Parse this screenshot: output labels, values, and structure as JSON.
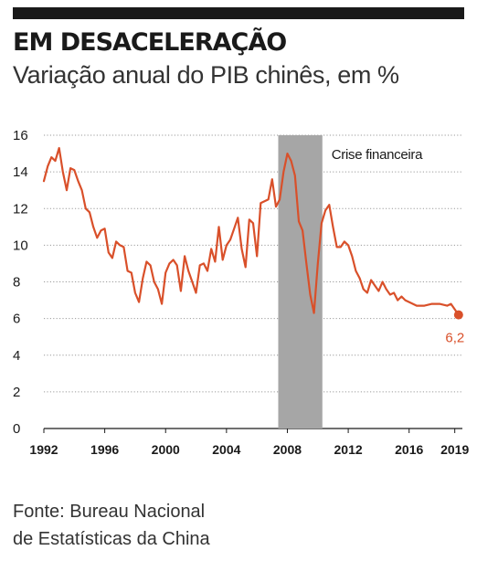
{
  "title": "EM DESACELERAÇÃO",
  "subtitle": "Variação anual do PIB chinês, em %",
  "source": {
    "line1": "Fonte: Bureau Nacional",
    "line2": "de Estatísticas da China"
  },
  "colors": {
    "line": "#d9502a",
    "crisis_band": "#a6a6a6",
    "grid": "#9a9a9a",
    "text": "#1a1a1a"
  },
  "chart_data": {
    "type": "line",
    "title": "EM DESACELERAÇÃO",
    "subtitle": "Variação anual do PIB chinês, em %",
    "xlabel": "",
    "ylabel": "",
    "xlim": [
      1992,
      2019.5
    ],
    "ylim": [
      0,
      16
    ],
    "y_ticks": [
      "0",
      "2",
      "4",
      "6",
      "8",
      "10",
      "12",
      "14",
      "16"
    ],
    "x_ticks": [
      "1992",
      "1996",
      "2000",
      "2004",
      "2008",
      "2012",
      "2016",
      "2019"
    ],
    "grid": true,
    "shaded_region": {
      "from": 2007.4,
      "to": 2010.3,
      "label": "Crise financeira"
    },
    "annotation": {
      "x": 2019.25,
      "y": 6.2,
      "label": "6,2"
    },
    "series": [
      {
        "values": [
          [
            1992.0,
            13.5
          ],
          [
            1992.25,
            14.3
          ],
          [
            1992.5,
            14.8
          ],
          [
            1992.75,
            14.6
          ],
          [
            1993.0,
            15.3
          ],
          [
            1993.25,
            14.0
          ],
          [
            1993.5,
            13.0
          ],
          [
            1993.75,
            14.2
          ],
          [
            1994.0,
            14.1
          ],
          [
            1994.25,
            13.5
          ],
          [
            1994.5,
            13.0
          ],
          [
            1994.75,
            12.0
          ],
          [
            1995.0,
            11.8
          ],
          [
            1995.25,
            11.0
          ],
          [
            1995.5,
            10.4
          ],
          [
            1995.75,
            10.8
          ],
          [
            1996.0,
            10.9
          ],
          [
            1996.25,
            9.6
          ],
          [
            1996.5,
            9.3
          ],
          [
            1996.75,
            10.2
          ],
          [
            1997.0,
            10.0
          ],
          [
            1997.25,
            9.9
          ],
          [
            1997.5,
            8.6
          ],
          [
            1997.75,
            8.5
          ],
          [
            1998.0,
            7.4
          ],
          [
            1998.25,
            6.9
          ],
          [
            1998.5,
            8.2
          ],
          [
            1998.75,
            9.1
          ],
          [
            1999.0,
            8.9
          ],
          [
            1999.25,
            8.0
          ],
          [
            1999.5,
            7.6
          ],
          [
            1999.75,
            6.8
          ],
          [
            2000.0,
            8.5
          ],
          [
            2000.25,
            9.0
          ],
          [
            2000.5,
            9.2
          ],
          [
            2000.75,
            8.9
          ],
          [
            2001.0,
            7.5
          ],
          [
            2001.25,
            9.4
          ],
          [
            2001.5,
            8.6
          ],
          [
            2001.75,
            8.0
          ],
          [
            2002.0,
            7.4
          ],
          [
            2002.25,
            8.9
          ],
          [
            2002.5,
            9.0
          ],
          [
            2002.75,
            8.6
          ],
          [
            2003.0,
            9.8
          ],
          [
            2003.25,
            9.1
          ],
          [
            2003.5,
            11.0
          ],
          [
            2003.75,
            9.2
          ],
          [
            2004.0,
            10.0
          ],
          [
            2004.25,
            10.3
          ],
          [
            2004.5,
            10.9
          ],
          [
            2004.75,
            11.5
          ],
          [
            2005.0,
            9.8
          ],
          [
            2005.25,
            8.8
          ],
          [
            2005.5,
            11.4
          ],
          [
            2005.75,
            11.2
          ],
          [
            2006.0,
            9.4
          ],
          [
            2006.25,
            12.3
          ],
          [
            2006.5,
            12.4
          ],
          [
            2006.75,
            12.5
          ],
          [
            2007.0,
            13.6
          ],
          [
            2007.25,
            12.1
          ],
          [
            2007.5,
            12.5
          ],
          [
            2007.75,
            14.0
          ],
          [
            2008.0,
            15.0
          ],
          [
            2008.25,
            14.6
          ],
          [
            2008.5,
            13.8
          ],
          [
            2008.75,
            11.3
          ],
          [
            2009.0,
            10.8
          ],
          [
            2009.25,
            9.0
          ],
          [
            2009.5,
            7.3
          ],
          [
            2009.75,
            6.3
          ],
          [
            2010.0,
            9.0
          ],
          [
            2010.25,
            11.2
          ],
          [
            2010.5,
            11.9
          ],
          [
            2010.75,
            12.2
          ],
          [
            2011.0,
            11.0
          ],
          [
            2011.25,
            9.9
          ],
          [
            2011.5,
            9.9
          ],
          [
            2011.75,
            10.2
          ],
          [
            2012.0,
            10.0
          ],
          [
            2012.25,
            9.4
          ],
          [
            2012.5,
            8.6
          ],
          [
            2012.75,
            8.2
          ],
          [
            2013.0,
            7.6
          ],
          [
            2013.25,
            7.4
          ],
          [
            2013.5,
            8.1
          ],
          [
            2013.75,
            7.8
          ],
          [
            2014.0,
            7.5
          ],
          [
            2014.25,
            8.0
          ],
          [
            2014.5,
            7.6
          ],
          [
            2014.75,
            7.3
          ],
          [
            2015.0,
            7.4
          ],
          [
            2015.25,
            7.0
          ],
          [
            2015.5,
            7.2
          ],
          [
            2015.75,
            7.0
          ],
          [
            2016.0,
            6.9
          ],
          [
            2016.5,
            6.7
          ],
          [
            2017.0,
            6.7
          ],
          [
            2017.5,
            6.8
          ],
          [
            2018.0,
            6.8
          ],
          [
            2018.5,
            6.7
          ],
          [
            2018.75,
            6.8
          ],
          [
            2019.0,
            6.5
          ],
          [
            2019.25,
            6.2
          ]
        ]
      }
    ]
  }
}
